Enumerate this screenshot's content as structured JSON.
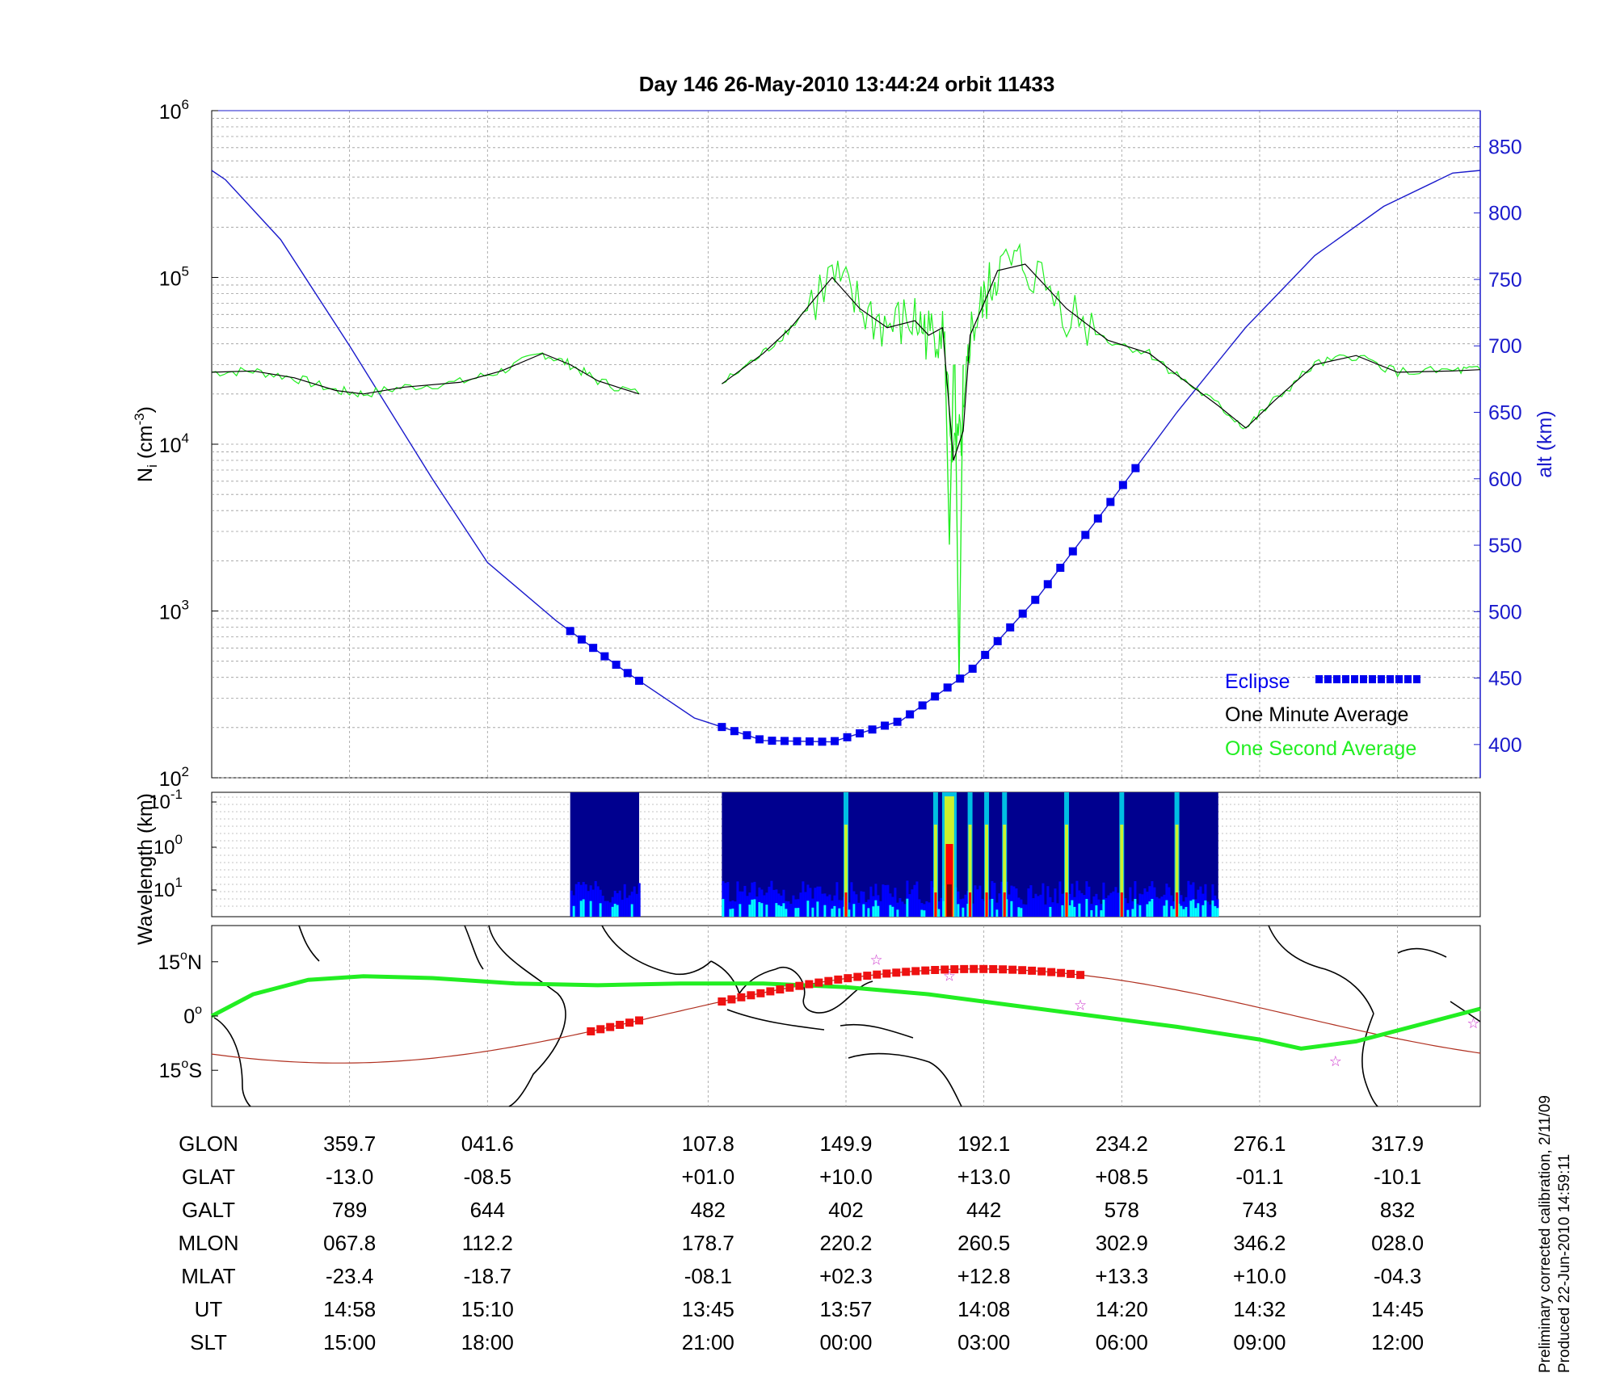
{
  "chart_data": {
    "type": "line",
    "title": "Day 146  26-May-2010 13:44:24   orbit 11433",
    "top_panel": {
      "ylabel_left": {
        "main": "N",
        "sub": "i",
        "units": "(cm",
        "sup": "-3",
        "close": ")"
      },
      "ylabel_right": "alt (km)",
      "yscale_left": "log",
      "ylim_left": [
        100,
        1000000
      ],
      "left_ticks": [
        {
          "base": "10",
          "exp": "2",
          "value": 100
        },
        {
          "base": "10",
          "exp": "3",
          "value": 1000
        },
        {
          "base": "10",
          "exp": "4",
          "value": 10000
        },
        {
          "base": "10",
          "exp": "5",
          "value": 100000
        },
        {
          "base": "10",
          "exp": "6",
          "value": 1000000
        }
      ],
      "ylim_right": [
        375,
        877
      ],
      "right_ticks": [
        "400",
        "450",
        "500",
        "550",
        "600",
        "650",
        "700",
        "750",
        "800",
        "850"
      ],
      "grid": true,
      "legend_position": "bottom-right",
      "legend": [
        {
          "label": "Eclipse",
          "color": "#0000ee"
        },
        {
          "label": "One Minute Average",
          "color": "#000000"
        },
        {
          "label": "One Second Average",
          "color": "#22ee22"
        }
      ],
      "altitude_series": {
        "name": "alt (km)",
        "color": "#1a1acc",
        "points": [
          [
            0,
            832
          ],
          [
            0.1,
            825
          ],
          [
            0.5,
            780
          ],
          [
            1,
            700
          ],
          [
            1.6,
            600
          ],
          [
            2.0,
            537
          ],
          [
            2.5,
            493
          ],
          [
            3.0,
            455
          ],
          [
            3.5,
            420
          ],
          [
            4.0,
            403
          ],
          [
            4.5,
            402
          ],
          [
            5.0,
            418
          ],
          [
            5.5,
            455
          ],
          [
            6.0,
            512
          ],
          [
            6.5,
            580
          ],
          [
            7.0,
            650
          ],
          [
            7.5,
            714
          ],
          [
            8.0,
            768
          ],
          [
            8.5,
            805
          ],
          [
            9.0,
            830
          ],
          [
            9.2,
            832
          ]
        ]
      },
      "density_series": {
        "name": "One Minute Average",
        "color": "#000000",
        "segments": [
          [
            [
              0,
              27000
            ],
            [
              0.3,
              27500
            ],
            [
              0.6,
              25000
            ],
            [
              0.9,
              21000
            ],
            [
              1.1,
              20000
            ],
            [
              1.4,
              22000
            ],
            [
              1.8,
              23500
            ],
            [
              2.1,
              27500
            ],
            [
              2.4,
              35000
            ],
            [
              2.6,
              30000
            ],
            [
              2.8,
              24000
            ],
            [
              3.1,
              20000
            ]
          ],
          [
            [
              3.7,
              23000
            ],
            [
              4.0,
              35000
            ],
            [
              4.2,
              50000
            ],
            [
              4.5,
              100000
            ],
            [
              4.7,
              65000
            ],
            [
              4.9,
              50000
            ],
            [
              5.1,
              55000
            ],
            [
              5.2,
              45000
            ],
            [
              5.3,
              50000
            ],
            [
              5.38,
              8000
            ],
            [
              5.45,
              12000
            ],
            [
              5.5,
              45000
            ],
            [
              5.6,
              70000
            ],
            [
              5.7,
              110000
            ],
            [
              5.9,
              120000
            ],
            [
              6.2,
              65000
            ],
            [
              6.5,
              42000
            ],
            [
              6.8,
              35000
            ],
            [
              7.0,
              26000
            ],
            [
              7.3,
              17000
            ],
            [
              7.5,
              12500
            ],
            [
              7.7,
              18000
            ],
            [
              8.0,
              30000
            ],
            [
              8.3,
              34000
            ],
            [
              8.6,
              27000
            ],
            [
              9.0,
              27500
            ],
            [
              9.2,
              28000
            ]
          ]
        ]
      },
      "one_second_spikes": [
        {
          "x": 5.35,
          "value": 2500
        },
        {
          "x": 5.42,
          "value": 380
        }
      ],
      "eclipse_segments": [
        [
          2.6,
          3.1
        ],
        [
          3.7,
          6.7
        ]
      ]
    },
    "spectrogram_panel": {
      "ylabel": "Wavelength (km)",
      "ticks": [
        {
          "base": "10",
          "exp": "-1"
        },
        {
          "base": "10",
          "exp": "0"
        },
        {
          "base": "10",
          "exp": "1"
        }
      ],
      "data_segments": [
        [
          2.6,
          3.1
        ],
        [
          3.7,
          7.3
        ]
      ],
      "intense_bands": [
        4.6,
        5.25,
        5.35,
        5.5,
        5.62,
        5.75,
        6.2,
        6.6,
        7.0
      ],
      "colormap": [
        "#00008f",
        "#0000ff",
        "#00ffff",
        "#ffff00",
        "#ff0000",
        "#800000"
      ]
    },
    "map_panel": {
      "lat_labels": [
        {
          "deg": "15",
          "hemi": "N",
          "value": 15
        },
        {
          "deg": "0",
          "hemi": "",
          "value": 0
        },
        {
          "deg": "15",
          "hemi": "S",
          "value": -15
        }
      ],
      "ylim": [
        -25,
        25
      ],
      "orbit_track_color": "#b03020",
      "eclipse_track_color": "#ee1111",
      "magnetic_equator_color": "#22ee22",
      "star_marker_color": "#cc33cc"
    },
    "x_positions": [
      1,
      2,
      3.6,
      4.6,
      5.6,
      6.6,
      7.6,
      8.6
    ],
    "table": {
      "rows": [
        {
          "label": "GLON",
          "values": [
            "359.7",
            "041.6",
            "107.8",
            "149.9",
            "192.1",
            "234.2",
            "276.1",
            "317.9"
          ]
        },
        {
          "label": "GLAT",
          "values": [
            "-13.0",
            "-08.5",
            "+01.0",
            "+10.0",
            "+13.0",
            "+08.5",
            "-01.1",
            "-10.1"
          ]
        },
        {
          "label": "GALT",
          "values": [
            "789",
            "644",
            "482",
            "402",
            "442",
            "578",
            "743",
            "832"
          ]
        },
        {
          "label": "MLON",
          "values": [
            "067.8",
            "112.2",
            "178.7",
            "220.2",
            "260.5",
            "302.9",
            "346.2",
            "028.0"
          ]
        },
        {
          "label": "MLAT",
          "values": [
            "-23.4",
            "-18.7",
            "-08.1",
            "+02.3",
            "+12.8",
            "+13.3",
            "+10.0",
            "-04.3"
          ]
        },
        {
          "label": "UT",
          "values": [
            "14:58",
            "15:10",
            "13:45",
            "13:57",
            "14:08",
            "14:20",
            "14:32",
            "14:45"
          ]
        },
        {
          "label": "SLT",
          "values": [
            "15:00",
            "18:00",
            "21:00",
            "00:00",
            "03:00",
            "06:00",
            "09:00",
            "12:00"
          ]
        }
      ]
    },
    "notes": [
      "Preliminary corrected calibration, 2/11/09",
      "Produced 22-Jun-2010 14:59:11"
    ]
  }
}
